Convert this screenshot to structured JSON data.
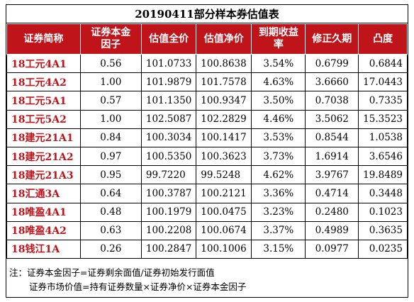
{
  "title": "20190411部分样本券估值表",
  "columns": [
    "证券简称",
    "证券本金因子",
    "估值全价",
    "估值净价",
    "到期收益率",
    "修正久期",
    "凸度"
  ],
  "rows": [
    [
      "18工元4A1",
      "0.56",
      "101.0733",
      "100.8638",
      "3.54%",
      "0.6799",
      "0.6844"
    ],
    [
      "18工元4A2",
      "1.00",
      "101.9879",
      "101.7578",
      "4.63%",
      "3.6660",
      "17.0443"
    ],
    [
      "18工元5A1",
      "0.57",
      "101.1350",
      "100.9347",
      "3.50%",
      "0.7038",
      "0.7335"
    ],
    [
      "18工元5A2",
      "1.00",
      "102.5087",
      "102.2829",
      "4.46%",
      "3.5062",
      "15.3523"
    ],
    [
      "18建元21A1",
      "0.84",
      "100.3034",
      "100.1417",
      "3.53%",
      "0.8544",
      "1.0538"
    ],
    [
      "18建元21A2",
      "0.97",
      "100.5350",
      "100.3623",
      "3.73%",
      "1.6914",
      "3.6546"
    ],
    [
      "18建元21A3",
      "0.95",
      "99.7220",
      "99.5248",
      "4.62%",
      "3.9767",
      "19.8489"
    ],
    [
      "18汇通3A",
      "0.64",
      "100.3787",
      "100.2121",
      "3.36%",
      "0.4714",
      "0.3448"
    ],
    [
      "18唯盈4A1",
      "0.48",
      "100.1979",
      "100.0475",
      "3.23%",
      "0.2480",
      "0.1023"
    ],
    [
      "18唯盈4A2",
      "0.63",
      "100.2208",
      "100.0674",
      "3.37%",
      "0.4989",
      "0.3635"
    ],
    [
      "18钱江1A",
      "0.26",
      "100.2847",
      "100.1006",
      "3.15%",
      "0.0977",
      "0.0235"
    ]
  ],
  "notes": [
    "注：证券本金因子=证券剩余面值/证券初始发行面值",
    "证券市场价值=持有证券数量×证券净价×证券本金因子"
  ],
  "colors": {
    "header_bg": "#c0141b",
    "name_text": "#c0141b"
  }
}
